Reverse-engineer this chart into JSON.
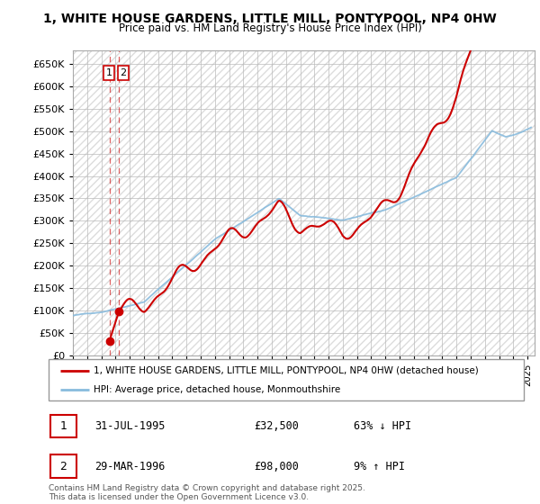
{
  "title_line1": "1, WHITE HOUSE GARDENS, LITTLE MILL, PONTYPOOL, NP4 0HW",
  "title_line2": "Price paid vs. HM Land Registry's House Price Index (HPI)",
  "legend_label1": "1, WHITE HOUSE GARDENS, LITTLE MILL, PONTYPOOL, NP4 0HW (detached house)",
  "legend_label2": "HPI: Average price, detached house, Monmouthshire",
  "line1_color": "#cc0000",
  "line2_color": "#88bbdd",
  "purchase1_date": 1995.58,
  "purchase1_price": 32500,
  "purchase2_date": 1996.24,
  "purchase2_price": 98000,
  "table_rows": [
    {
      "num": "1",
      "date": "31-JUL-1995",
      "price": "£32,500",
      "hpi": "63% ↓ HPI"
    },
    {
      "num": "2",
      "date": "29-MAR-1996",
      "price": "£98,000",
      "hpi": "9% ↑ HPI"
    }
  ],
  "footer": "Contains HM Land Registry data © Crown copyright and database right 2025.\nThis data is licensed under the Open Government Licence v3.0.",
  "ylim": [
    0,
    680000
  ],
  "yticks": [
    0,
    50000,
    100000,
    150000,
    200000,
    250000,
    300000,
    350000,
    400000,
    450000,
    500000,
    550000,
    600000,
    650000
  ],
  "xlim_start": 1993,
  "xlim_end": 2025.5,
  "hatch_color": "#eeeeee"
}
